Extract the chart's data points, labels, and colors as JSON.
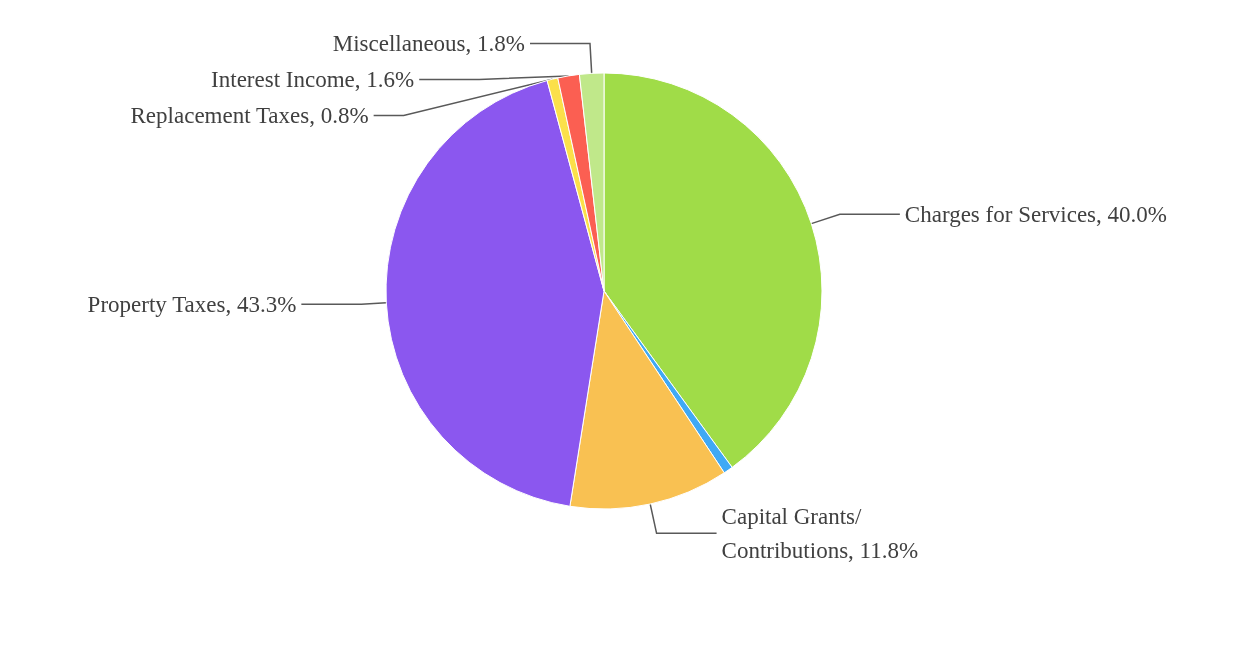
{
  "chart_data": {
    "type": "pie",
    "categories": [
      "Charges for Services",
      null,
      "Capital Grants/Contributions",
      "Property Taxes",
      "Replacement Taxes",
      "Interest Income",
      "Miscellaneous"
    ],
    "values": [
      40.0,
      0.7,
      11.8,
      43.3,
      0.8,
      1.6,
      1.8
    ],
    "value_labels": [
      "40.0%",
      null,
      "11.8%",
      "43.3%",
      "0.8%",
      "1.6%",
      "1.8%"
    ],
    "colors": [
      "#a0dc48",
      "#3fa9f5",
      "#f9c152",
      "#8b57ef",
      "#fbe04a",
      "#fb5f52",
      "#c0e88a"
    ],
    "legend": false
  }
}
